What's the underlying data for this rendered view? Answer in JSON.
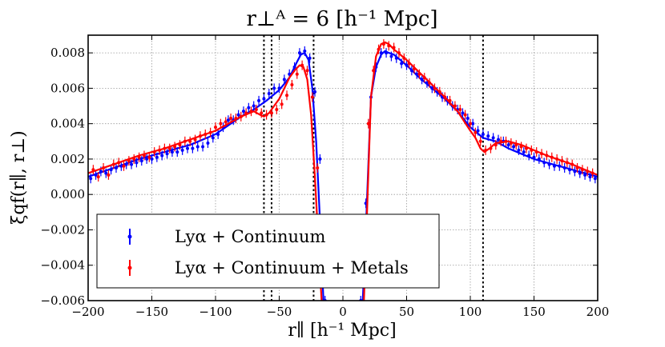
{
  "chart_data": {
    "type": "line",
    "title": "r⊥ᴬ = 6 [h⁻¹ Mpc]",
    "xlabel": "r∥ [h⁻¹ Mpc]",
    "ylabel": "ξqf(r∥, r⊥)",
    "xlim": [
      -200,
      200
    ],
    "ylim": [
      -0.006,
      0.009
    ],
    "xticks": [
      -200,
      -150,
      -100,
      -50,
      0,
      50,
      100,
      150,
      200
    ],
    "xtick_labels": [
      "−200",
      "−150",
      "−100",
      "−50",
      "0",
      "50",
      "100",
      "150",
      "200"
    ],
    "yticks": [
      -0.006,
      -0.004,
      -0.002,
      0.0,
      0.002,
      0.004,
      0.006,
      0.008
    ],
    "ytick_labels": [
      "−0.006",
      "−0.004",
      "−0.002",
      "0.000",
      "0.002",
      "0.004",
      "0.006",
      "0.008"
    ],
    "grid": true,
    "legend_position": "bottom-left",
    "vlines": [
      -62,
      -56,
      -23,
      110
    ],
    "series": [
      {
        "name": "Lyα + Continuum",
        "color": "#0000ff",
        "model_x": [
          -200,
          -180,
          -160,
          -140,
          -120,
          -100,
          -90,
          -80,
          -70,
          -60,
          -50,
          -42,
          -36,
          -33,
          -30,
          -27,
          -24,
          -21,
          -18,
          -15,
          -13,
          13,
          15,
          18,
          22,
          26,
          30,
          33,
          36,
          40,
          50,
          60,
          70,
          80,
          90,
          100,
          110,
          120,
          130,
          140,
          150,
          160,
          180,
          200
        ],
        "model_y": [
          0.001,
          0.0015,
          0.002,
          0.0024,
          0.0028,
          0.0034,
          0.0039,
          0.0044,
          0.0048,
          0.0053,
          0.0059,
          0.0066,
          0.0075,
          0.0079,
          0.008,
          0.0076,
          0.006,
          0.003,
          -0.0015,
          -0.0065,
          -0.008,
          -0.008,
          -0.007,
          -0.002,
          0.0055,
          0.0072,
          0.0079,
          0.0081,
          0.008,
          0.0079,
          0.0073,
          0.0066,
          0.006,
          0.0054,
          0.0047,
          0.0038,
          0.0032,
          0.003,
          0.0026,
          0.0023,
          0.002,
          0.0018,
          0.0014,
          0.001
        ],
        "points_x": [
          -198,
          -194,
          -190,
          -186,
          -182,
          -178,
          -174,
          -170,
          -166,
          -162,
          -158,
          -154,
          -150,
          -146,
          -142,
          -138,
          -134,
          -130,
          -126,
          -122,
          -118,
          -114,
          -110,
          -106,
          -102,
          -98,
          -94,
          -90,
          -86,
          -82,
          -78,
          -74,
          -70,
          -66,
          -62,
          -58,
          -54,
          -50,
          -46,
          -42,
          -38,
          -34,
          -30,
          -26,
          -22,
          -18,
          -14,
          14,
          18,
          22,
          26,
          30,
          34,
          38,
          42,
          46,
          50,
          54,
          58,
          62,
          66,
          70,
          74,
          78,
          82,
          86,
          90,
          94,
          98,
          102,
          106,
          110,
          114,
          118,
          122,
          126,
          130,
          134,
          138,
          142,
          146,
          150,
          154,
          158,
          162,
          166,
          170,
          174,
          178,
          182,
          186,
          190,
          194,
          198
        ],
        "points_y": [
          0.0009,
          0.0011,
          0.0013,
          0.0012,
          0.0014,
          0.0015,
          0.0016,
          0.0017,
          0.0017,
          0.0018,
          0.0019,
          0.002,
          0.002,
          0.0021,
          0.0022,
          0.0023,
          0.0024,
          0.0024,
          0.0025,
          0.0026,
          0.0026,
          0.0027,
          0.0027,
          0.0029,
          0.0032,
          0.0034,
          0.0038,
          0.0042,
          0.0042,
          0.0045,
          0.0047,
          0.0049,
          0.005,
          0.0053,
          0.0054,
          0.0057,
          0.006,
          0.006,
          0.0065,
          0.0068,
          0.0072,
          0.008,
          0.0081,
          0.0077,
          0.0058,
          0.002,
          -0.006,
          -0.006,
          -0.0005,
          0.0055,
          0.0072,
          0.008,
          0.008,
          0.0078,
          0.0077,
          0.0074,
          0.0073,
          0.007,
          0.0068,
          0.0065,
          0.0063,
          0.006,
          0.0058,
          0.0055,
          0.0053,
          0.005,
          0.0048,
          0.0046,
          0.0043,
          0.004,
          0.0036,
          0.0034,
          0.0033,
          0.0032,
          0.0031,
          0.003,
          0.0028,
          0.0027,
          0.0025,
          0.0024,
          0.0022,
          0.0021,
          0.002,
          0.0018,
          0.0017,
          0.0016,
          0.0016,
          0.0015,
          0.0014,
          0.0013,
          0.0012,
          0.0011,
          0.001,
          0.0009
        ]
      },
      {
        "name": "Lyα + Continuum + Metals",
        "color": "#ff0000",
        "model_x": [
          -200,
          -180,
          -160,
          -140,
          -120,
          -100,
          -90,
          -80,
          -70,
          -65,
          -62,
          -58,
          -54,
          -50,
          -46,
          -42,
          -38,
          -34,
          -31,
          -28,
          -25,
          -22,
          -19,
          -16,
          -14,
          14,
          16,
          18,
          22,
          26,
          30,
          33,
          36,
          40,
          50,
          60,
          70,
          80,
          90,
          100,
          104,
          108,
          111,
          115,
          120,
          130,
          140,
          150,
          160,
          180,
          200
        ],
        "model_y": [
          0.0012,
          0.0017,
          0.0022,
          0.0026,
          0.0031,
          0.0036,
          0.004,
          0.0044,
          0.0047,
          0.0045,
          0.0044,
          0.0046,
          0.005,
          0.0054,
          0.006,
          0.0066,
          0.007,
          0.0073,
          0.0072,
          0.0065,
          0.0045,
          0.001,
          -0.003,
          -0.007,
          -0.008,
          -0.008,
          -0.007,
          -0.003,
          0.0055,
          0.0078,
          0.0085,
          0.0086,
          0.0085,
          0.0082,
          0.0076,
          0.0069,
          0.0062,
          0.0055,
          0.0047,
          0.0036,
          0.0032,
          0.0026,
          0.0024,
          0.0026,
          0.0029,
          0.003,
          0.0028,
          0.0025,
          0.0022,
          0.0017,
          0.0011
        ],
        "points_x": [
          -196,
          -192,
          -188,
          -184,
          -180,
          -176,
          -172,
          -168,
          -164,
          -160,
          -156,
          -152,
          -148,
          -144,
          -140,
          -136,
          -132,
          -128,
          -124,
          -120,
          -116,
          -112,
          -108,
          -104,
          -100,
          -96,
          -92,
          -88,
          -84,
          -80,
          -76,
          -72,
          -68,
          -64,
          -60,
          -56,
          -52,
          -48,
          -44,
          -40,
          -36,
          -32,
          -28,
          -24,
          -20,
          -16,
          16,
          20,
          24,
          28,
          32,
          36,
          40,
          44,
          48,
          52,
          56,
          60,
          64,
          68,
          72,
          76,
          80,
          84,
          88,
          92,
          96,
          100,
          104,
          108,
          112,
          116,
          120,
          124,
          128,
          132,
          136,
          140,
          144,
          148,
          152,
          156,
          160,
          164,
          168,
          172,
          176,
          180,
          184,
          188,
          192,
          196
        ],
        "points_y": [
          0.0014,
          0.001,
          0.0015,
          0.0011,
          0.0017,
          0.0018,
          0.0016,
          0.0019,
          0.002,
          0.0021,
          0.0022,
          0.0021,
          0.0024,
          0.0025,
          0.0026,
          0.0026,
          0.0027,
          0.0028,
          0.003,
          0.003,
          0.0031,
          0.0033,
          0.0034,
          0.0035,
          0.0038,
          0.004,
          0.0041,
          0.0043,
          0.0043,
          0.0044,
          0.0046,
          0.0047,
          0.0048,
          0.0046,
          0.0045,
          0.0046,
          0.0048,
          0.0051,
          0.0056,
          0.0062,
          0.0068,
          0.0073,
          0.007,
          0.0055,
          0.0015,
          -0.005,
          -0.005,
          0.004,
          0.007,
          0.0082,
          0.0085,
          0.0084,
          0.0083,
          0.008,
          0.0077,
          0.0074,
          0.0071,
          0.0068,
          0.0066,
          0.0063,
          0.006,
          0.0058,
          0.0055,
          0.0053,
          0.005,
          0.0048,
          0.0045,
          0.004,
          0.0035,
          0.003,
          0.0025,
          0.0026,
          0.0028,
          0.003,
          0.003,
          0.0029,
          0.0028,
          0.0027,
          0.0026,
          0.0025,
          0.0024,
          0.0023,
          0.0022,
          0.0021,
          0.002,
          0.0019,
          0.0018,
          0.0017,
          0.0015,
          0.0014,
          0.0013,
          0.0012
        ]
      }
    ]
  }
}
